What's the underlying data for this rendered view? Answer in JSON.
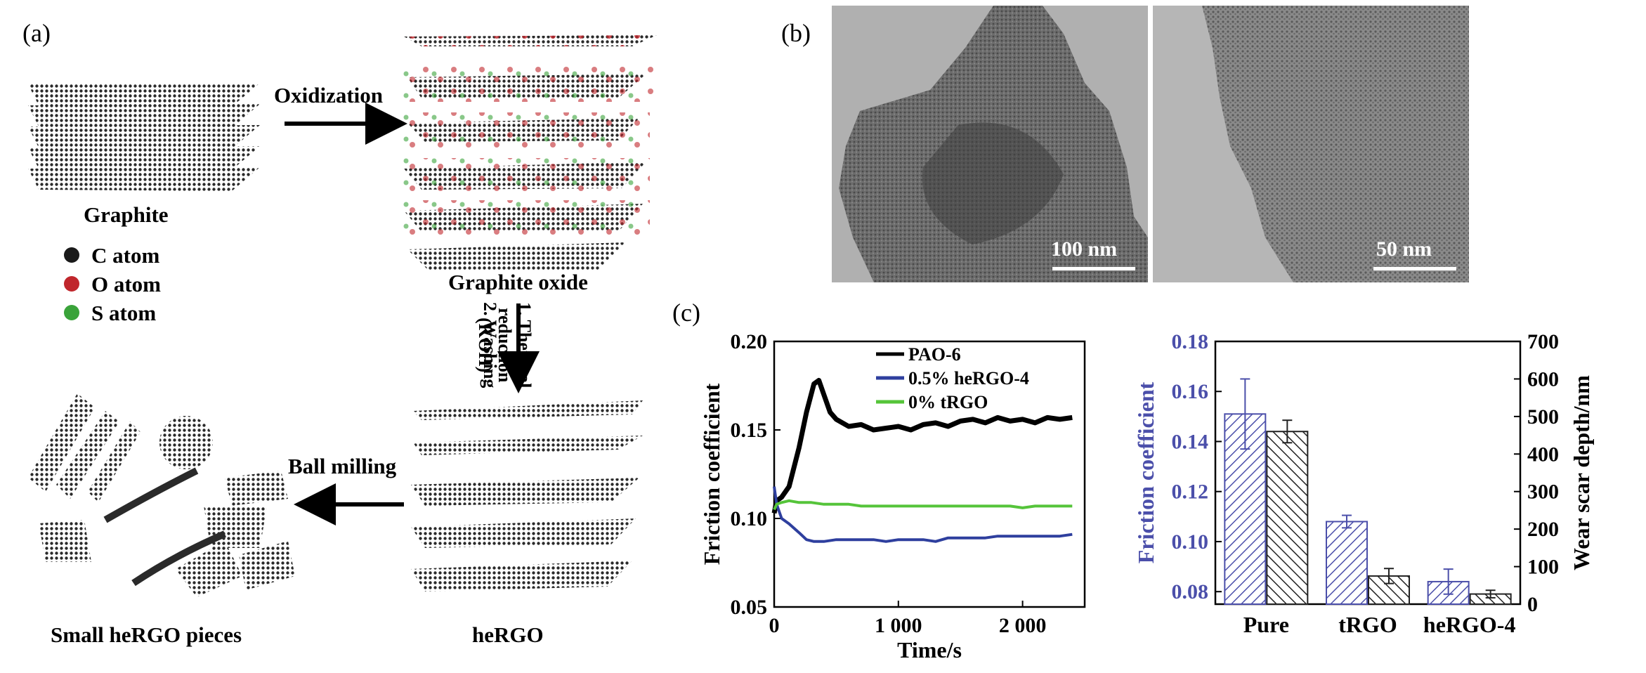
{
  "panel_a": {
    "label": "(a)",
    "graphite": "Graphite",
    "oxidization": "Oxidization",
    "graphite_oxide": "Graphite oxide",
    "legend": [
      {
        "name": "C atom",
        "color": "#1a1a1a"
      },
      {
        "name": "O atom",
        "color": "#c0262c"
      },
      {
        "name": "S atom",
        "color": "#3aa33a"
      }
    ],
    "step1_line1": "1. Thermal",
    "step1_line2": "reduction",
    "step1_line3": "(KOH)",
    "step2": "2. Washing",
    "hergo": "heRGO",
    "ball_milling": "Ball milling",
    "small_pieces": "Small heRGO pieces"
  },
  "panel_b": {
    "label": "(b)",
    "scale_left": "100 nm",
    "scale_right": "50 nm"
  },
  "panel_c": {
    "label": "(c)"
  },
  "chart_data": [
    {
      "type": "line",
      "xlabel": "Time/s",
      "ylabel": "Friction coefficient",
      "xlim": [
        0,
        2500
      ],
      "ylim": [
        0.05,
        0.2
      ],
      "xticks": [
        0,
        1000,
        2000
      ],
      "xtick_labels": [
        "0",
        "1 000",
        "2 000"
      ],
      "yticks": [
        0.05,
        0.1,
        0.15,
        0.2
      ],
      "ytick_labels": [
        "0.05",
        "0.10",
        "0.15",
        "0.20"
      ],
      "legend_position": "top-right",
      "series": [
        {
          "name": "PAO-6",
          "color": "#000000",
          "x": [
            0,
            20,
            60,
            120,
            200,
            260,
            320,
            360,
            400,
            450,
            500,
            600,
            700,
            800,
            900,
            1000,
            1100,
            1200,
            1300,
            1400,
            1500,
            1600,
            1700,
            1800,
            1900,
            2000,
            2100,
            2200,
            2300,
            2400
          ],
          "y": [
            0.103,
            0.11,
            0.112,
            0.118,
            0.14,
            0.16,
            0.176,
            0.178,
            0.17,
            0.16,
            0.156,
            0.152,
            0.153,
            0.15,
            0.151,
            0.152,
            0.15,
            0.153,
            0.154,
            0.152,
            0.155,
            0.156,
            0.154,
            0.157,
            0.155,
            0.156,
            0.154,
            0.157,
            0.156,
            0.157
          ]
        },
        {
          "name": "0.5% heRGO-4",
          "color": "#2e3f9e",
          "x": [
            0,
            20,
            60,
            120,
            200,
            260,
            320,
            400,
            500,
            600,
            700,
            800,
            900,
            1000,
            1100,
            1200,
            1300,
            1400,
            1500,
            1600,
            1700,
            1800,
            1900,
            2000,
            2100,
            2200,
            2300,
            2400
          ],
          "y": [
            0.118,
            0.108,
            0.1,
            0.097,
            0.092,
            0.088,
            0.087,
            0.087,
            0.088,
            0.088,
            0.088,
            0.088,
            0.087,
            0.088,
            0.088,
            0.088,
            0.087,
            0.089,
            0.089,
            0.089,
            0.089,
            0.09,
            0.09,
            0.09,
            0.09,
            0.09,
            0.09,
            0.091
          ]
        },
        {
          "name": "0% tRGO",
          "color": "#55c43a",
          "x": [
            0,
            20,
            60,
            120,
            200,
            300,
            400,
            500,
            600,
            700,
            800,
            900,
            1000,
            1100,
            1200,
            1300,
            1400,
            1500,
            1600,
            1700,
            1800,
            1900,
            2000,
            2100,
            2200,
            2300,
            2400
          ],
          "y": [
            0.105,
            0.108,
            0.109,
            0.11,
            0.109,
            0.109,
            0.108,
            0.108,
            0.108,
            0.107,
            0.107,
            0.107,
            0.107,
            0.107,
            0.107,
            0.107,
            0.107,
            0.107,
            0.107,
            0.107,
            0.107,
            0.107,
            0.106,
            0.107,
            0.107,
            0.107,
            0.107
          ]
        }
      ]
    },
    {
      "type": "bar",
      "categories": [
        "Pure",
        "tRGO",
        "heRGO-4"
      ],
      "ylabel_left": "Friction coefficient",
      "ylabel_right": "Wear scar depth/nm",
      "ylim_left": [
        0.075,
        0.18
      ],
      "ylim_right": [
        0,
        700
      ],
      "yticks_left": [
        0.08,
        0.1,
        0.12,
        0.14,
        0.16,
        0.18
      ],
      "ytick_labels_left": [
        "0.08",
        "0.10",
        "0.12",
        "0.14",
        "0.16",
        "0.18"
      ],
      "yticks_right": [
        0,
        100,
        200,
        300,
        400,
        500,
        600,
        700
      ],
      "ytick_labels_right": [
        "0",
        "100",
        "200",
        "300",
        "400",
        "500",
        "600",
        "700"
      ],
      "left_color": "#4b4faa",
      "right_color": "#222222",
      "series": [
        {
          "values": [
            0.151,
            0.108,
            0.084
          ],
          "errors": [
            0.014,
            0.0025,
            0.005
          ],
          "axis": "left"
        },
        {
          "values": [
            460,
            75,
            27
          ],
          "errors": [
            30,
            20,
            10
          ],
          "axis": "right"
        }
      ]
    }
  ]
}
